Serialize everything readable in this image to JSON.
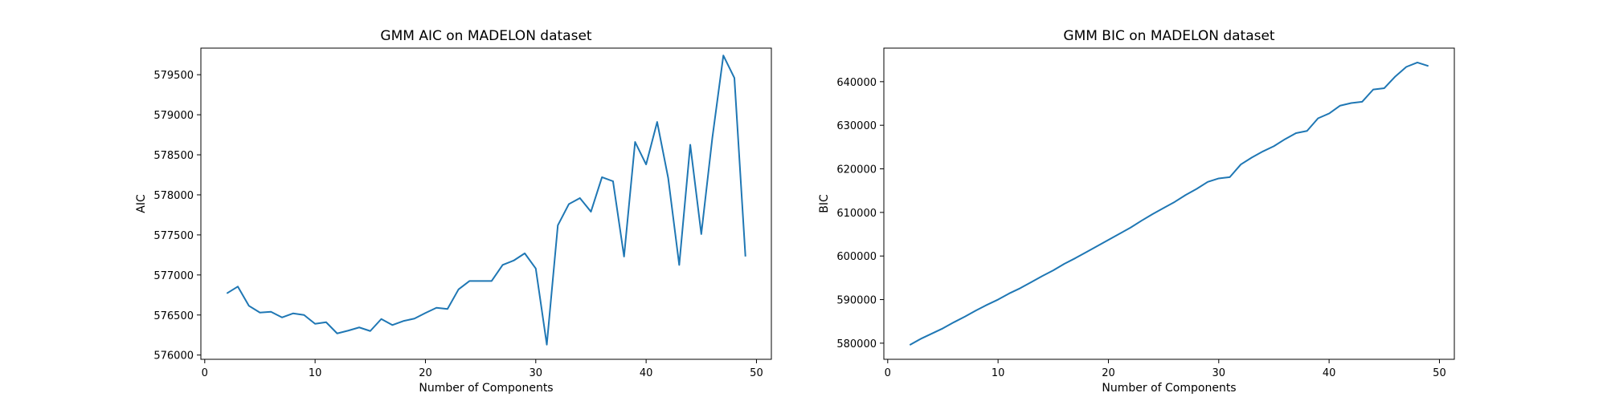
{
  "chart_data": [
    {
      "type": "line",
      "title": "GMM AIC on MADELON dataset",
      "xlabel": "Number of Components",
      "ylabel": "AIC",
      "xlim": [
        -0.35,
        51.35
      ],
      "ylim": [
        575947,
        579832
      ],
      "xticks": [
        0,
        10,
        20,
        30,
        40,
        50
      ],
      "yticks": [
        576000,
        576500,
        577000,
        577500,
        578000,
        578500,
        579000,
        579500
      ],
      "grid": false,
      "line_color": "#1f77b4",
      "series": [
        {
          "x": [
            2,
            3,
            4,
            5,
            6,
            7,
            8,
            9,
            10,
            11,
            12,
            13,
            14,
            15,
            16,
            17,
            18,
            19,
            20,
            21,
            22,
            23,
            24,
            25,
            26,
            27,
            28,
            29,
            30,
            31,
            32,
            33,
            34,
            35,
            36,
            37,
            38,
            39,
            40,
            41,
            42,
            43,
            44,
            45,
            46,
            47,
            48,
            49
          ],
          "values": [
            576770,
            576855,
            576615,
            576530,
            576540,
            576470,
            576520,
            576500,
            576390,
            576410,
            576270,
            576305,
            576345,
            576300,
            576450,
            576375,
            576425,
            576455,
            576525,
            576590,
            576575,
            576820,
            576925,
            576925,
            576925,
            577125,
            577180,
            577270,
            577080,
            576130,
            577620,
            577885,
            577960,
            577790,
            578220,
            578170,
            577230,
            578660,
            578380,
            578910,
            578210,
            577125,
            578625,
            577510,
            578710,
            579740,
            579460,
            577230
          ]
        }
      ]
    },
    {
      "type": "line",
      "title": "GMM BIC on MADELON dataset",
      "xlabel": "Number of Components",
      "ylabel": "BIC",
      "xlim": [
        -0.35,
        51.35
      ],
      "ylim": [
        576300,
        647700
      ],
      "xticks": [
        0,
        10,
        20,
        30,
        40,
        50
      ],
      "yticks": [
        580000,
        590000,
        600000,
        610000,
        620000,
        630000,
        640000
      ],
      "grid": false,
      "line_color": "#1f77b4",
      "series": [
        {
          "x": [
            2,
            3,
            4,
            5,
            6,
            7,
            8,
            9,
            10,
            11,
            12,
            13,
            14,
            15,
            16,
            17,
            18,
            19,
            20,
            21,
            22,
            23,
            24,
            25,
            26,
            27,
            28,
            29,
            30,
            31,
            32,
            33,
            34,
            35,
            36,
            37,
            38,
            39,
            40,
            41,
            42,
            43,
            44,
            45,
            46,
            47,
            48,
            49
          ],
          "values": [
            579600,
            581000,
            582200,
            583400,
            584800,
            586100,
            587500,
            588800,
            590000,
            591400,
            592600,
            594000,
            595400,
            596700,
            598200,
            599500,
            600900,
            602300,
            603700,
            605100,
            606500,
            608100,
            609600,
            611000,
            612400,
            614000,
            615400,
            617000,
            617800,
            618100,
            621000,
            622600,
            624000,
            625200,
            626800,
            628200,
            628700,
            631600,
            632700,
            634500,
            635100,
            635400,
            638200,
            638500,
            641200,
            643400,
            644400,
            643600
          ]
        }
      ]
    }
  ]
}
